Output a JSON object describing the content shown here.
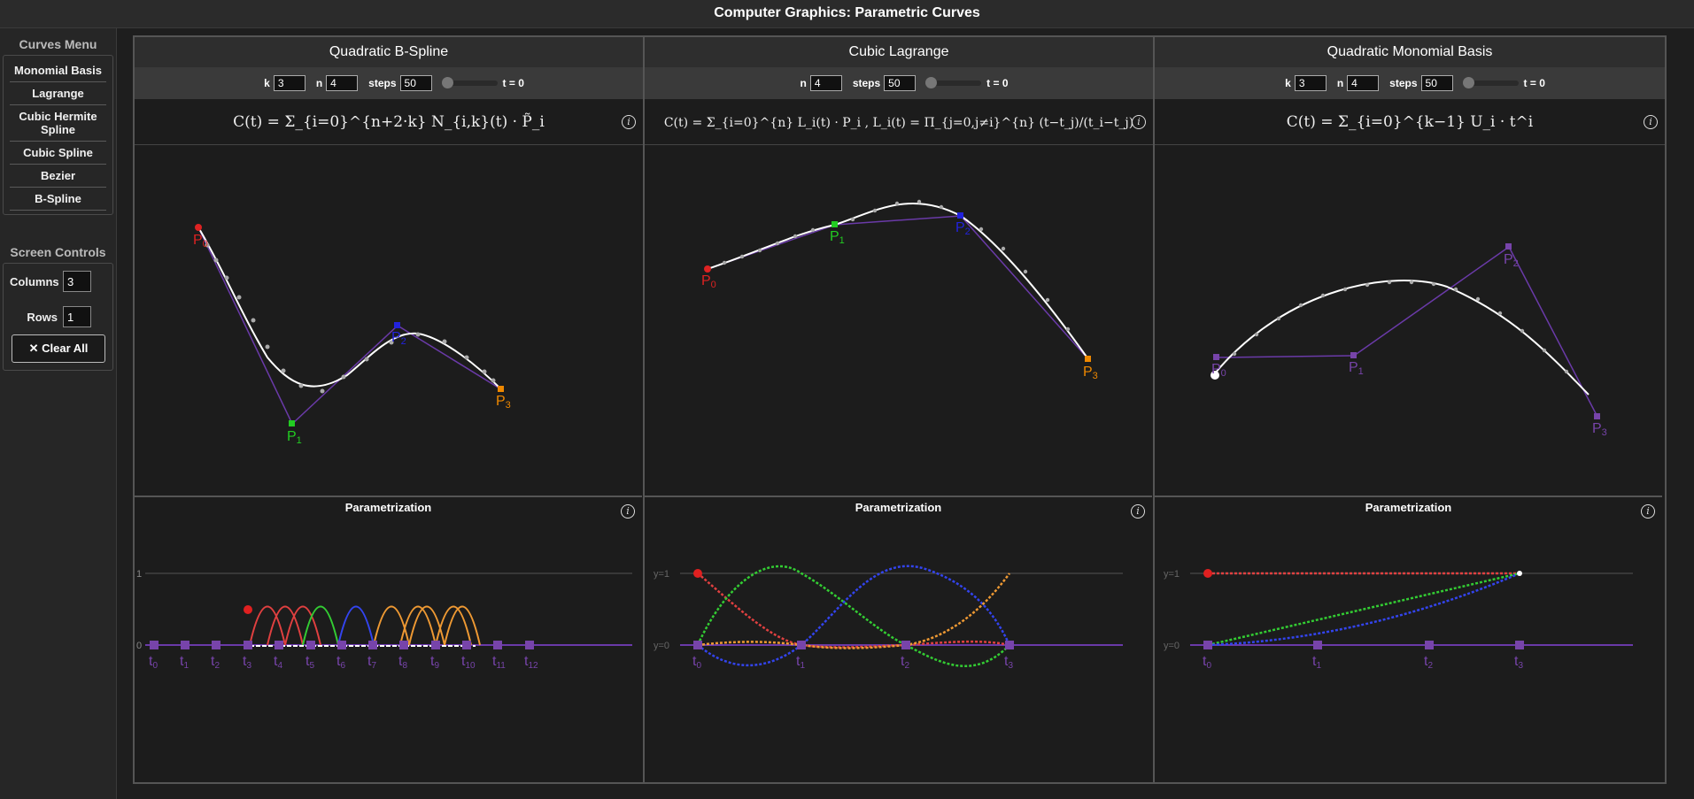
{
  "app": {
    "title": "Computer Graphics: Parametric Curves"
  },
  "sidebar": {
    "menu_title": "Curves Menu",
    "items": [
      {
        "label": "Monomial Basis"
      },
      {
        "label": "Lagrange"
      },
      {
        "label": "Cubic Hermite Spline"
      },
      {
        "label": "Cubic Spline"
      },
      {
        "label": "Bezier"
      },
      {
        "label": "B-Spline"
      }
    ],
    "screen_title": "Screen Controls",
    "columns_label": "Columns",
    "columns_value": "3",
    "rows_label": "Rows",
    "rows_value": "1",
    "clear_label": "✕ Clear All"
  },
  "panels": [
    {
      "title": "Quadratic B-Spline",
      "controls": {
        "k_label": "k",
        "k_value": "3",
        "n_label": "n",
        "n_value": "4",
        "steps_label": "steps",
        "steps_value": "50",
        "t_label": "t = 0",
        "t_value": 0
      },
      "formula": "C(t) = Σ_{i=0}^{n+2·k} N_{i,k}(t) · P̃_i",
      "param_title": "Parametrization",
      "control_points": [
        {
          "label": "P0",
          "color": "#dd2222"
        },
        {
          "label": "P1",
          "color": "#22cc22"
        },
        {
          "label": "P2",
          "color": "#2222dd"
        },
        {
          "label": "P3",
          "color": "#ee8800"
        }
      ],
      "y_ticks": [
        "1",
        "0"
      ],
      "knots": [
        "t0",
        "t1",
        "t2",
        "t3",
        "t4",
        "t5",
        "t6",
        "t7",
        "t8",
        "t9",
        "t10",
        "t11",
        "t12"
      ]
    },
    {
      "title": "Cubic Lagrange",
      "controls": {
        "n_label": "n",
        "n_value": "4",
        "steps_label": "steps",
        "steps_value": "50",
        "t_label": "t = 0",
        "t_value": 0
      },
      "formula": "C(t) = Σ_{i=0}^{n} L_i(t) · P_i ,  L_i(t) = Π_{j=0,j≠i}^{n} (t−t_j)/(t_i−t_j)",
      "param_title": "Parametrization",
      "control_points": [
        {
          "label": "P0",
          "color": "#dd2222"
        },
        {
          "label": "P1",
          "color": "#22cc22"
        },
        {
          "label": "P2",
          "color": "#2222dd"
        },
        {
          "label": "P3",
          "color": "#ee8800"
        }
      ],
      "y_ticks": [
        "y=1",
        "y=0"
      ],
      "knots": [
        "t0",
        "t1",
        "t2",
        "t3"
      ]
    },
    {
      "title": "Quadratic Monomial Basis",
      "controls": {
        "k_label": "k",
        "k_value": "3",
        "n_label": "n",
        "n_value": "4",
        "steps_label": "steps",
        "steps_value": "50",
        "t_label": "t = 0",
        "t_value": 0
      },
      "formula": "C(t) = Σ_{i=0}^{k−1} U_i · t^i",
      "param_title": "Parametrization",
      "control_points": [
        {
          "label": "P0",
          "color": "#7744aa"
        },
        {
          "label": "P1",
          "color": "#7744aa"
        },
        {
          "label": "P2",
          "color": "#7744aa"
        },
        {
          "label": "P3",
          "color": "#7744aa"
        }
      ],
      "y_ticks": [
        "y=1",
        "y=0"
      ],
      "knots": [
        "t0",
        "t1",
        "t2",
        "t3"
      ]
    }
  ],
  "colors": {
    "polygon": "#6a3aa8",
    "curve": "#ffffff",
    "basis_red": "#e04040",
    "basis_green": "#33cc33",
    "basis_blue": "#3344ee",
    "basis_orange": "#ee9933"
  }
}
